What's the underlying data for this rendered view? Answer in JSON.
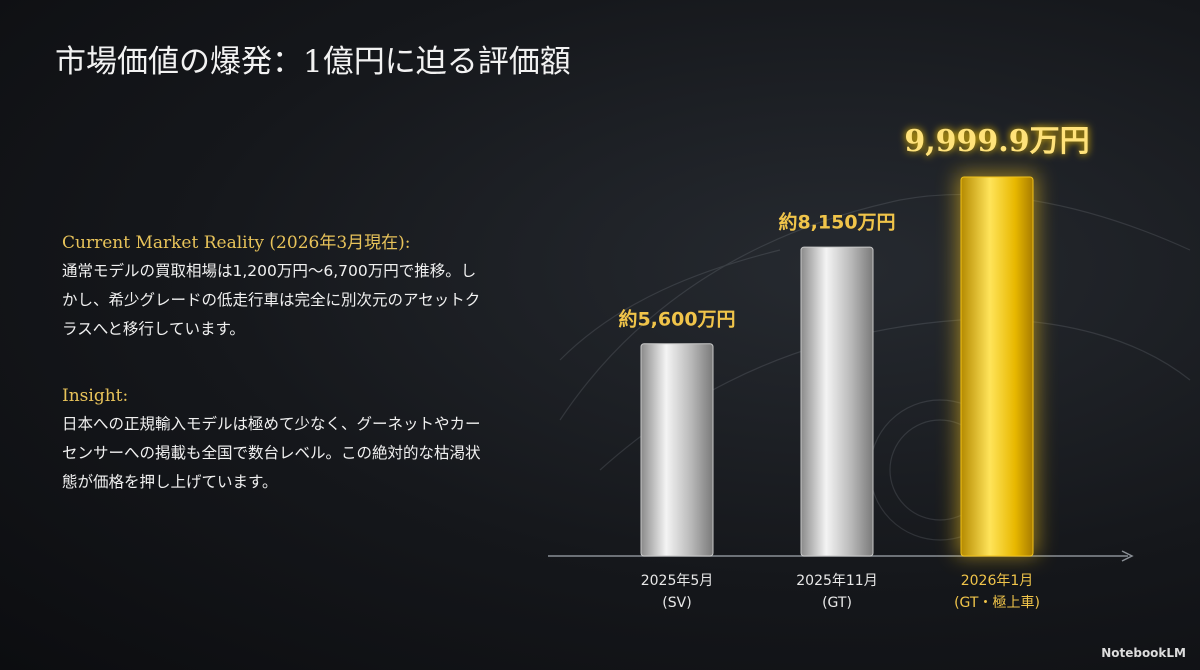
{
  "title": "市場価値の爆発：1億円に迫る評価額",
  "sections": [
    {
      "heading": "Current Market Reality (2026年3月現在):",
      "body": "通常モデルの買取相場は1,200万円〜6,700万円で推移。しかし、希少グレードの低走行車は完全に別次元のアセットクラスへと移行しています。"
    },
    {
      "heading": "Insight:",
      "body": "日本への正規輸入モデルは極めて少なく、グーネットやカーセンサーへの掲載も全国で数台レベル。この絶対的な枯渇状態が価格を押し上げています。"
    }
  ],
  "footer": "NotebookLM",
  "chart_data": {
    "type": "bar",
    "categories": [
      [
        "2025年5月",
        "(SV)"
      ],
      [
        "2025年11月",
        "(GT)"
      ],
      [
        "2026年1月",
        "(GT・極上車)"
      ]
    ],
    "values": [
      5600,
      8150,
      9999.9
    ],
    "value_labels": [
      "約5,600万円",
      "約8,150万円",
      "9,999.9万円"
    ],
    "colors": [
      "#c9c9c9",
      "#c9c9c9",
      "#f2c21a"
    ],
    "ylim": [
      0,
      10000
    ]
  }
}
